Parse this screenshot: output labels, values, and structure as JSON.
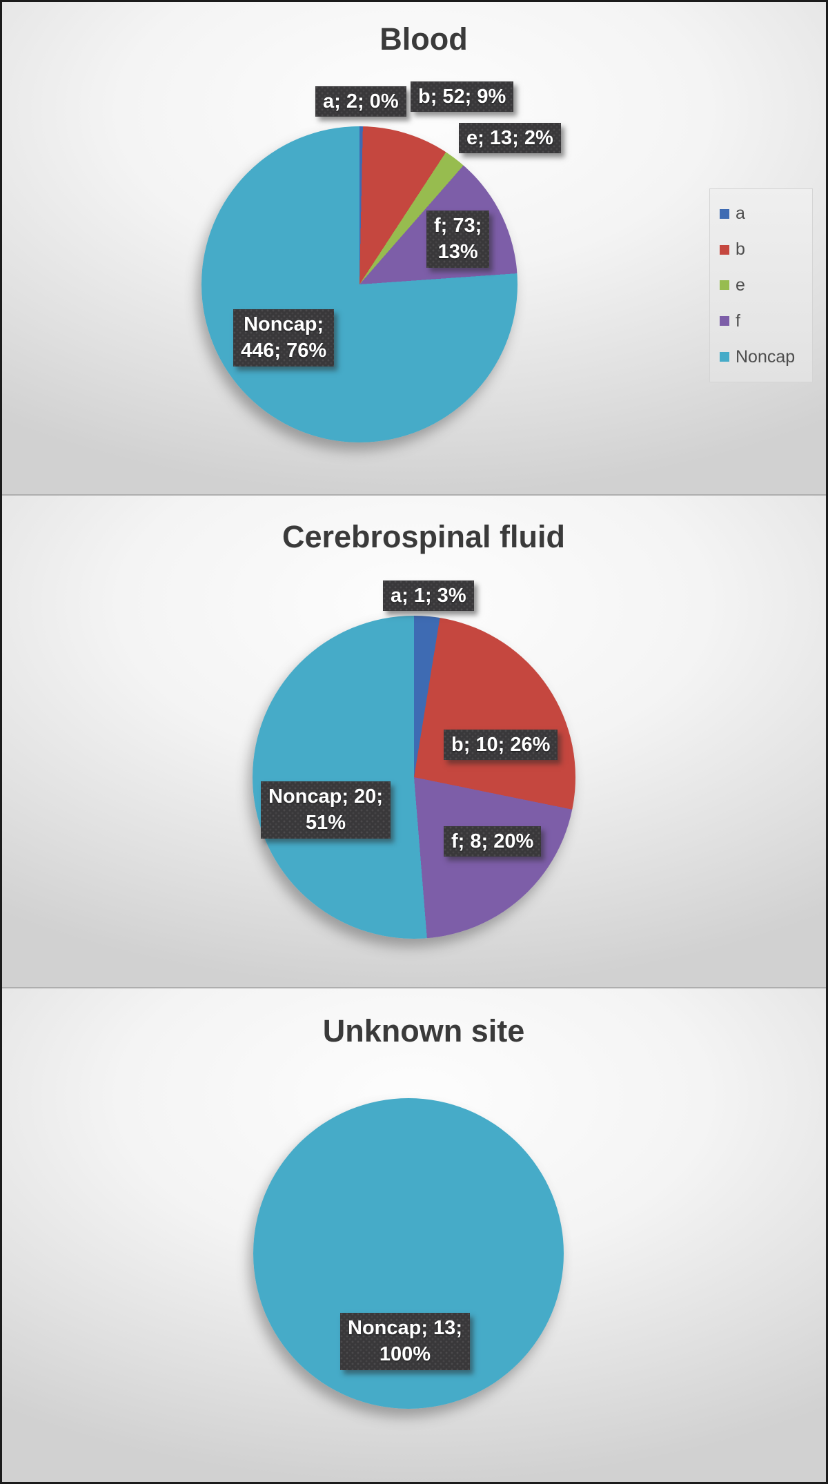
{
  "figure": {
    "label_box_color": "#39383a",
    "label_text_color": "#ffffff",
    "title_color": "#3a3a3a"
  },
  "legend": {
    "position": "right-of-first-chart",
    "items": [
      {
        "label": "a",
        "color": "#3e6bb3"
      },
      {
        "label": "b",
        "color": "#c5473f"
      },
      {
        "label": "e",
        "color": "#97bc4f"
      },
      {
        "label": "f",
        "color": "#7d5ea8"
      },
      {
        "label": "Noncap",
        "color": "#46abc8"
      }
    ]
  },
  "chart_data": [
    {
      "type": "pie",
      "title": "Blood",
      "categories": [
        "a",
        "b",
        "e",
        "f",
        "Noncap"
      ],
      "values": [
        2,
        52,
        13,
        73,
        446
      ],
      "percents": [
        "0%",
        "9%",
        "2%",
        "13%",
        "76%"
      ],
      "colors": [
        "#3e6bb3",
        "#c5473f",
        "#97bc4f",
        "#7d5ea8",
        "#46abc8"
      ],
      "data_labels": [
        "a; 2; 0%",
        "b; 52; 9%",
        "e; 13; 2%",
        "f; 73;\n13%",
        "Noncap;\n446; 76%"
      ],
      "start_angle_deg": 0,
      "direction": "clockwise",
      "legend": "right"
    },
    {
      "type": "pie",
      "title": "Cerebrospinal fluid",
      "categories": [
        "a",
        "b",
        "f",
        "Noncap"
      ],
      "values": [
        1,
        10,
        8,
        20
      ],
      "percents": [
        "3%",
        "26%",
        "20%",
        "51%"
      ],
      "colors": [
        "#3e6bb3",
        "#c5473f",
        "#7d5ea8",
        "#46abc8"
      ],
      "data_labels": [
        "a; 1; 3%",
        "b; 10; 26%",
        "f; 8; 20%",
        "Noncap; 20;\n51%"
      ],
      "start_angle_deg": 0,
      "direction": "clockwise",
      "legend": "none"
    },
    {
      "type": "pie",
      "title": "Unknown site",
      "categories": [
        "Noncap"
      ],
      "values": [
        13
      ],
      "percents": [
        "100%"
      ],
      "colors": [
        "#46abc8"
      ],
      "data_labels": [
        "Noncap; 13;\n100%"
      ],
      "start_angle_deg": 0,
      "direction": "clockwise",
      "legend": "none"
    }
  ]
}
